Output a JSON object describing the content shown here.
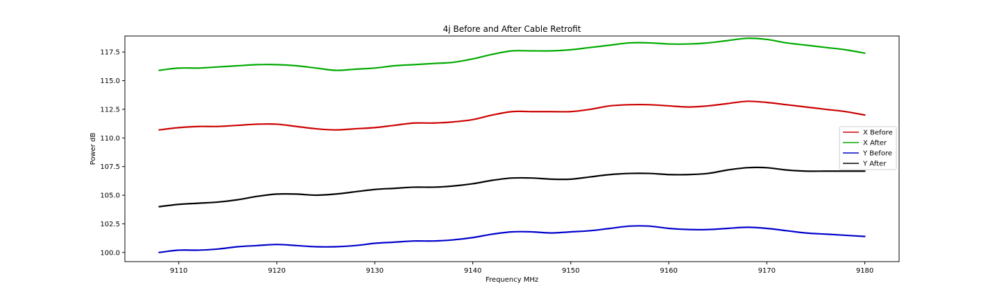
{
  "chart_data": {
    "type": "line",
    "title": "4j Before and After Cable Retrofit",
    "xlabel": "Frequency MHz",
    "ylabel": "Power dB",
    "xlim": [
      9104.5,
      9183.5
    ],
    "ylim": [
      99.2,
      118.9
    ],
    "xticks": [
      9110,
      9120,
      9130,
      9140,
      9150,
      9160,
      9170,
      9180
    ],
    "yticks": [
      100.0,
      102.5,
      105.0,
      107.5,
      110.0,
      112.5,
      115.0,
      117.5
    ],
    "grid": false,
    "legend_position": "right",
    "x": [
      9108,
      9110,
      9112,
      9114,
      9116,
      9118,
      9120,
      9122,
      9124,
      9126,
      9128,
      9130,
      9132,
      9134,
      9136,
      9138,
      9140,
      9142,
      9144,
      9146,
      9148,
      9150,
      9152,
      9154,
      9156,
      9158,
      9160,
      9162,
      9164,
      9166,
      9168,
      9170,
      9172,
      9174,
      9176,
      9178,
      9180
    ],
    "series": [
      {
        "name": "X Before",
        "color": "#cc0000",
        "values": [
          110.7,
          110.9,
          111.0,
          111.0,
          111.1,
          111.2,
          111.2,
          111.0,
          110.8,
          110.7,
          110.8,
          110.9,
          111.1,
          111.3,
          111.3,
          111.4,
          111.6,
          112.0,
          112.3,
          112.3,
          112.3,
          112.3,
          112.5,
          112.8,
          112.9,
          112.9,
          112.8,
          112.7,
          112.8,
          113.0,
          113.2,
          113.1,
          112.9,
          112.7,
          112.5,
          112.3,
          112.0
        ]
      },
      {
        "name": "X After",
        "color": "#00aa00",
        "values": [
          115.9,
          116.1,
          116.1,
          116.2,
          116.3,
          116.4,
          116.4,
          116.3,
          116.1,
          115.9,
          116.0,
          116.1,
          116.3,
          116.4,
          116.5,
          116.6,
          116.9,
          117.3,
          117.6,
          117.6,
          117.6,
          117.7,
          117.9,
          118.1,
          118.3,
          118.3,
          118.2,
          118.2,
          118.3,
          118.5,
          118.7,
          118.6,
          118.3,
          118.1,
          117.9,
          117.7,
          117.4
        ]
      },
      {
        "name": "Y Before",
        "color": "#0000cc",
        "values": [
          100.0,
          100.2,
          100.2,
          100.3,
          100.5,
          100.6,
          100.7,
          100.6,
          100.5,
          100.5,
          100.6,
          100.8,
          100.9,
          101.0,
          101.0,
          101.1,
          101.3,
          101.6,
          101.8,
          101.8,
          101.7,
          101.8,
          101.9,
          102.1,
          102.3,
          102.3,
          102.1,
          102.0,
          102.0,
          102.1,
          102.2,
          102.1,
          101.9,
          101.7,
          101.6,
          101.5,
          101.4
        ]
      },
      {
        "name": "Y After",
        "color": "#000000",
        "values": [
          104.0,
          104.2,
          104.3,
          104.4,
          104.6,
          104.9,
          105.1,
          105.1,
          105.0,
          105.1,
          105.3,
          105.5,
          105.6,
          105.7,
          105.7,
          105.8,
          106.0,
          106.3,
          106.5,
          106.5,
          106.4,
          106.4,
          106.6,
          106.8,
          106.9,
          106.9,
          106.8,
          106.8,
          106.9,
          107.2,
          107.4,
          107.4,
          107.2,
          107.1,
          107.1,
          107.1,
          107.1
        ]
      }
    ]
  }
}
